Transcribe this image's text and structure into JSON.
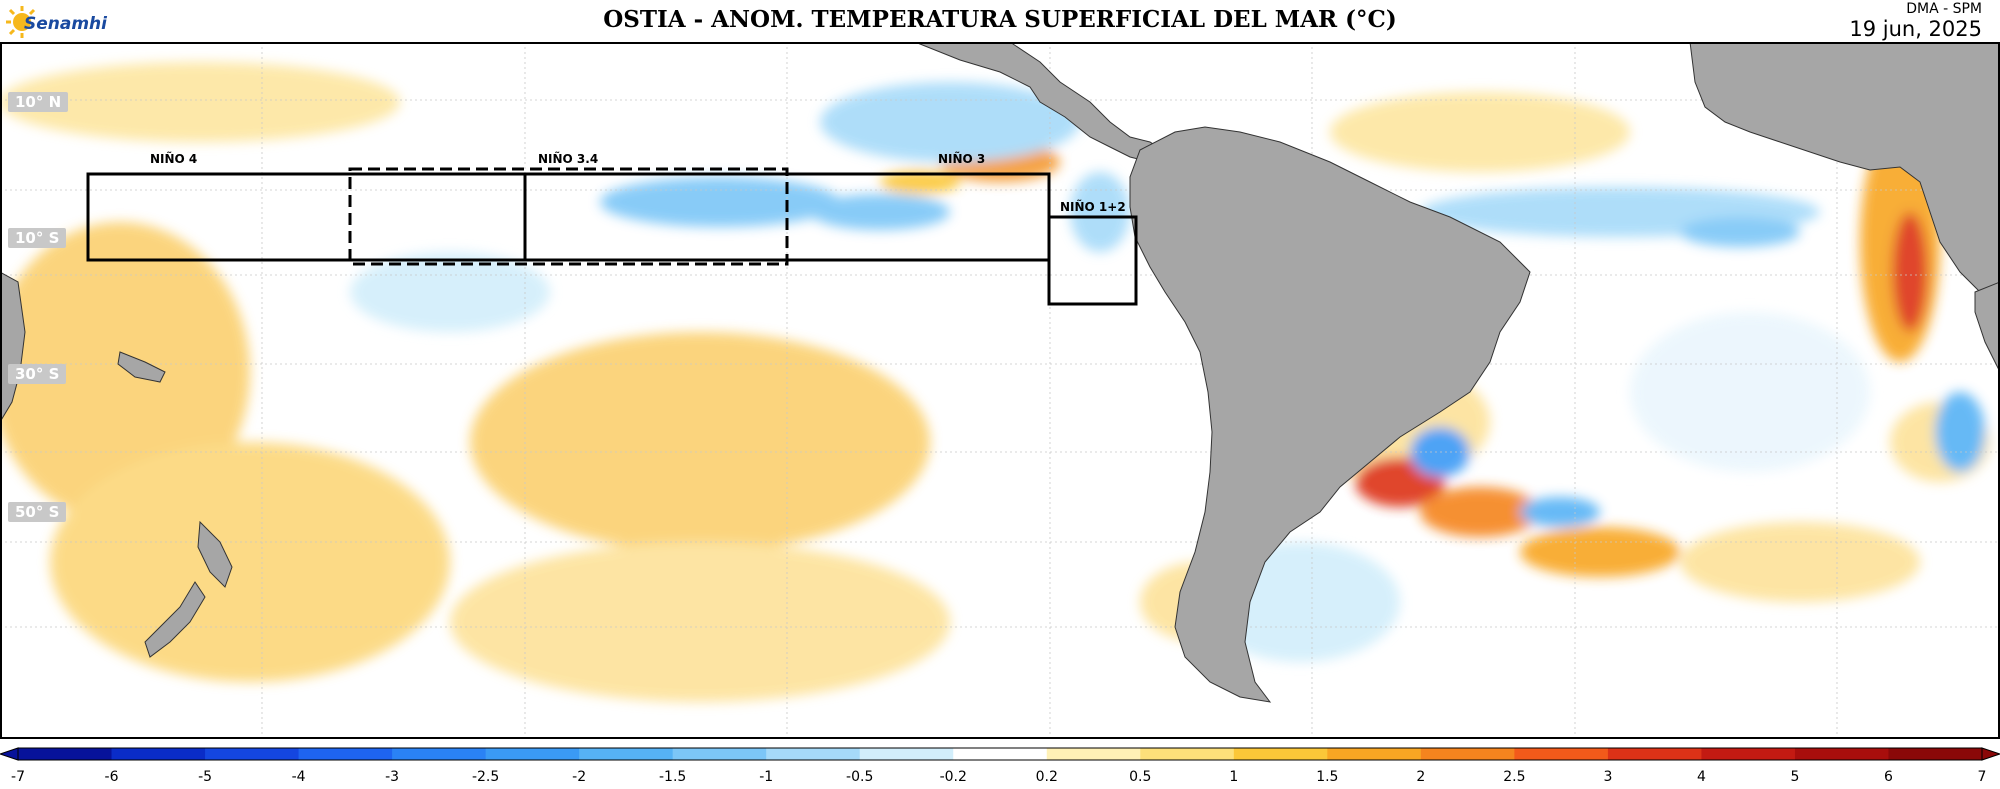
{
  "header": {
    "logo_text": "Senamhi",
    "title": "OSTIA - ANOM. TEMPERATURA SUPERFICIAL DEL MAR (°C)",
    "agency": "DMA - SPM",
    "date": "19 jun, 2025"
  },
  "map": {
    "land_color": "#a6a6a6",
    "lat_labels": [
      "10° N",
      "10° S",
      "30° S",
      "50° S"
    ],
    "regions": [
      {
        "label": "NIÑO 4",
        "dashed": false
      },
      {
        "label": "NIÑO 3.4",
        "dashed": true
      },
      {
        "label": "NIÑO 3",
        "dashed": false
      },
      {
        "label": "NIÑO 1+2",
        "dashed": false
      }
    ]
  },
  "colorbar": {
    "ticks": [
      "-7",
      "-6",
      "-5",
      "-4",
      "-3",
      "-2.5",
      "-2",
      "-1.5",
      "-1",
      "-0.5",
      "-0.2",
      "0.2",
      "0.5",
      "1",
      "1.5",
      "2",
      "2.5",
      "3",
      "4",
      "5",
      "6",
      "7"
    ],
    "colors": [
      "#07129a",
      "#0a2cc8",
      "#1446e0",
      "#1e64f0",
      "#2a82f5",
      "#3a9af5",
      "#56b2f5",
      "#7cc6f7",
      "#a6daf9",
      "#d2eefb",
      "#ffffff",
      "#fff1b6",
      "#fde07a",
      "#fbc738",
      "#f8a623",
      "#f5841e",
      "#f35a1a",
      "#dd3217",
      "#c31a12",
      "#a80e0c",
      "#8a0808"
    ]
  }
}
